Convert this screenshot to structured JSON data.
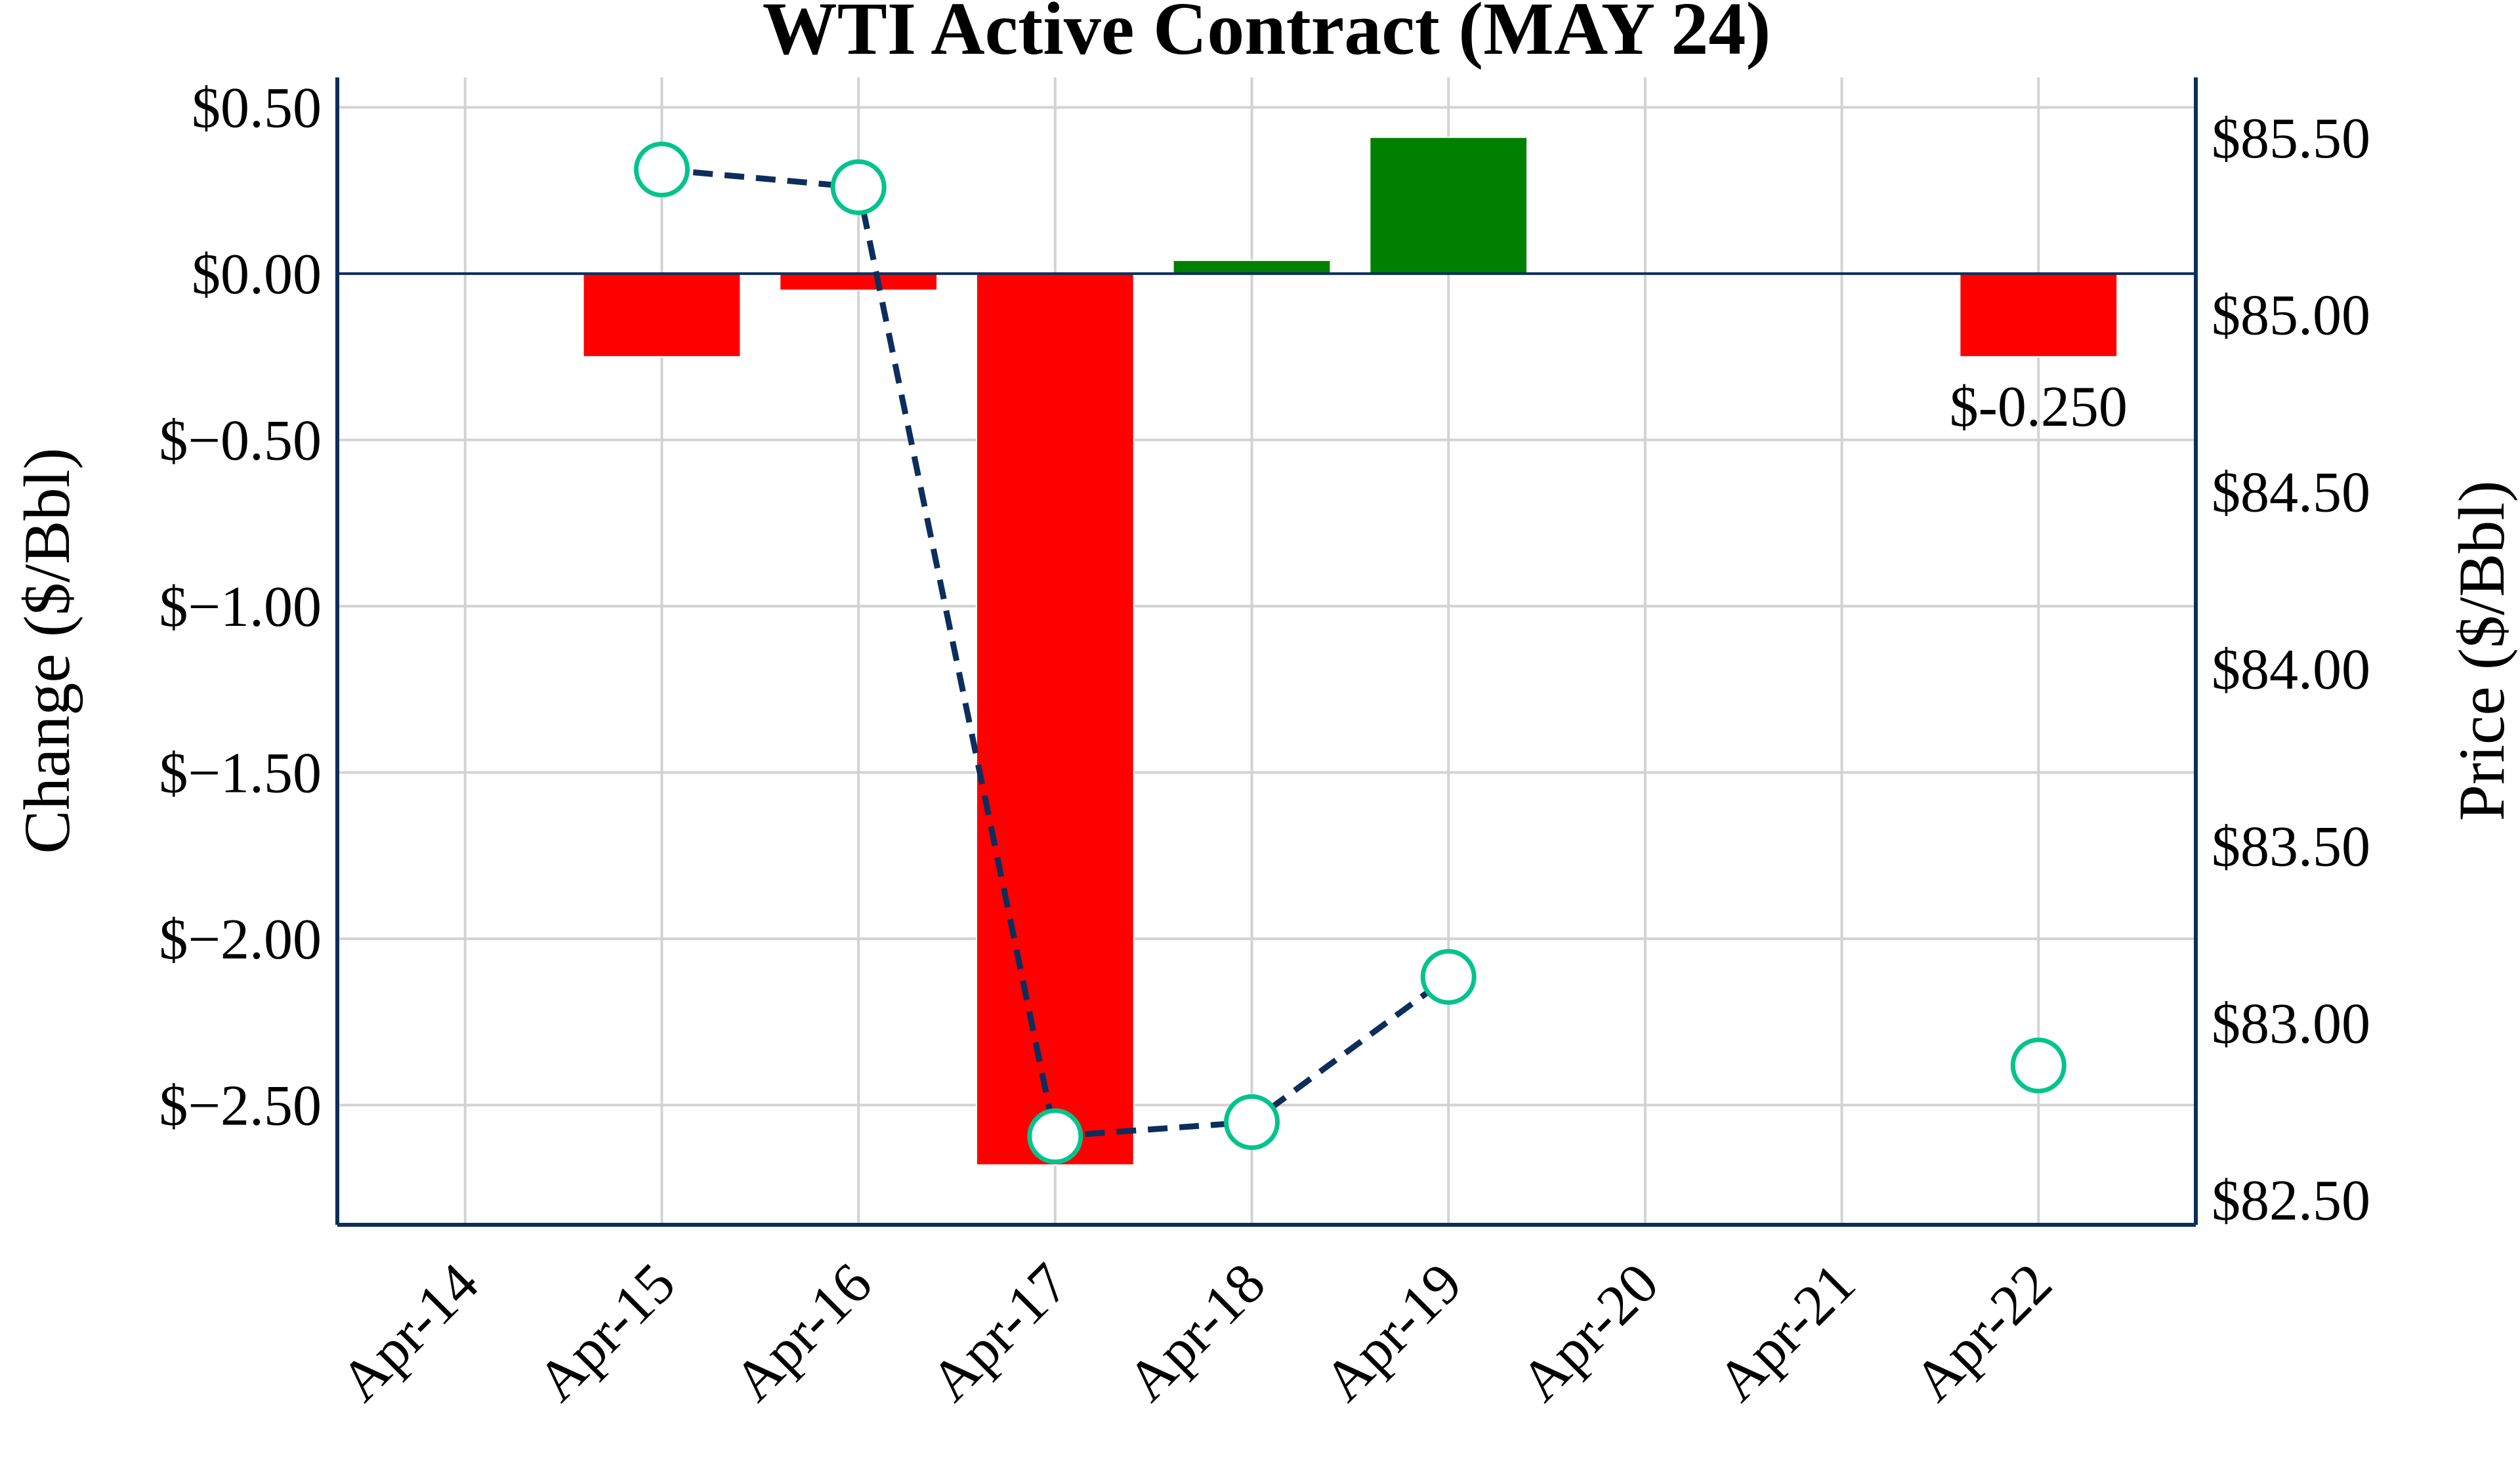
{
  "chart_data": {
    "type": "bar+line",
    "title": "WTI Active Contract (MAY 24)",
    "categories": [
      "Apr-14",
      "Apr-15",
      "Apr-16",
      "Apr-17",
      "Apr-18",
      "Apr-19",
      "Apr-20",
      "Apr-21",
      "Apr-22"
    ],
    "bar_series": {
      "name": "Change",
      "axis": "left",
      "values": [
        null,
        -0.25,
        -0.05,
        -2.68,
        0.04,
        0.41,
        null,
        null,
        -0.25
      ]
    },
    "line_series": {
      "name": "Price",
      "axis": "right",
      "values": [
        null,
        85.41,
        85.36,
        82.68,
        82.72,
        83.13,
        null,
        null,
        82.88
      ]
    },
    "annotations": [
      {
        "category": "Apr-22",
        "text": "$-0.250"
      }
    ],
    "ylabel": "Change ($/Bbl)",
    "y2label": "Price ($/Bbl)",
    "ylim": [
      -2.86,
      0.59
    ],
    "y2lim": [
      82.43,
      85.67
    ],
    "yticks": [
      0.5,
      0.0,
      -0.5,
      -1.0,
      -1.5,
      -2.0,
      -2.5
    ],
    "ytick_labels": [
      "$0.50",
      "$0.00",
      "$−0.50",
      "$−1.00",
      "$−1.50",
      "$−2.00",
      "$−2.50"
    ],
    "y2ticks": [
      85.5,
      85.0,
      84.5,
      84.0,
      83.5,
      83.0,
      82.5
    ],
    "y2tick_labels": [
      "$85.50",
      "$85.00",
      "$84.50",
      "$84.00",
      "$83.50",
      "$83.00",
      "$82.50"
    ],
    "grid": true,
    "colors": {
      "positive": "#008000",
      "negative": "#ff0000",
      "line": "#0d2e5c",
      "marker": "#00c48c",
      "axis": "#0d2e5c",
      "grid": "#d3d3d3"
    }
  }
}
